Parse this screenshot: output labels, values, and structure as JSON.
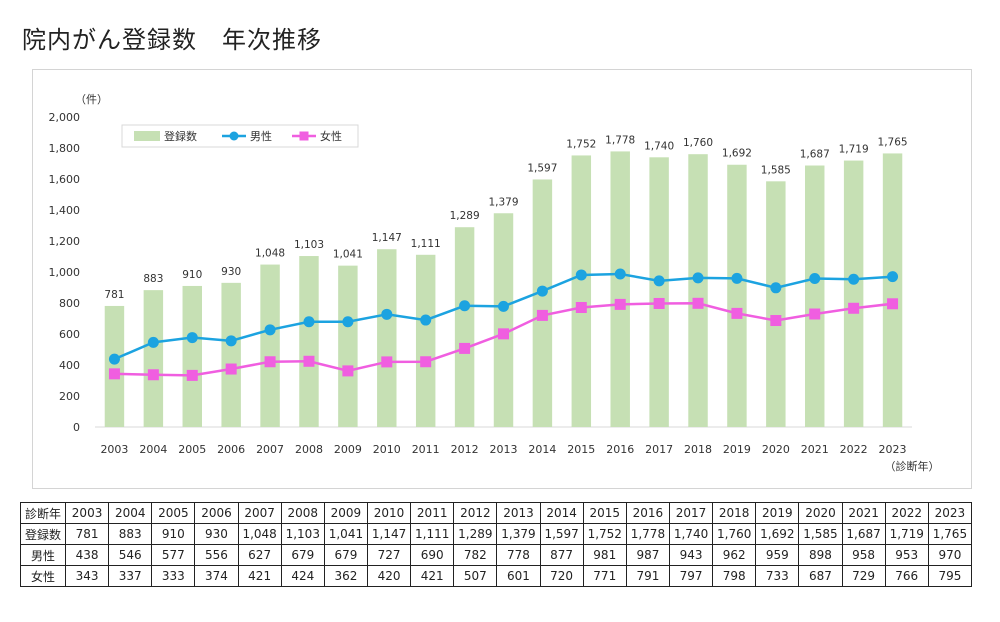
{
  "title": "院内がん登録数　年次推移",
  "chart_data": {
    "type": "bar",
    "categories": [
      "2003",
      "2004",
      "2005",
      "2006",
      "2007",
      "2008",
      "2009",
      "2010",
      "2011",
      "2012",
      "2013",
      "2014",
      "2015",
      "2016",
      "2017",
      "2018",
      "2019",
      "2020",
      "2021",
      "2022",
      "2023"
    ],
    "series": [
      {
        "name": "登録数",
        "type": "bar",
        "color": "#c6e0b4",
        "values": [
          781,
          883,
          910,
          930,
          1048,
          1103,
          1041,
          1147,
          1111,
          1289,
          1379,
          1597,
          1752,
          1778,
          1740,
          1760,
          1692,
          1585,
          1687,
          1719,
          1765
        ],
        "labels": [
          "781",
          "883",
          "910",
          "930",
          "1,048",
          "1,103",
          "1,041",
          "1,147",
          "1,111",
          "1,289",
          "1,379",
          "1,597",
          "1,752",
          "1,778",
          "1,740",
          "1,760",
          "1,692",
          "1,585",
          "1,687",
          "1,719",
          "1,765"
        ]
      },
      {
        "name": "男性",
        "type": "line",
        "color": "#1ca3e0",
        "values": [
          438,
          546,
          577,
          556,
          627,
          679,
          679,
          727,
          690,
          782,
          778,
          877,
          981,
          987,
          943,
          962,
          959,
          898,
          958,
          953,
          970
        ]
      },
      {
        "name": "女性",
        "type": "line",
        "color": "#f05ee0",
        "values": [
          343,
          337,
          333,
          374,
          421,
          424,
          362,
          420,
          421,
          507,
          601,
          720,
          771,
          791,
          797,
          798,
          733,
          687,
          729,
          766,
          795
        ]
      }
    ],
    "yunit": "（件）",
    "xunit": "（診断年）",
    "ylim": [
      0,
      2000
    ],
    "yticks": [
      "0",
      "200",
      "400",
      "600",
      "800",
      "1,000",
      "1,200",
      "1,400",
      "1,600",
      "1,800",
      "2,000"
    ],
    "legend": "top-left",
    "grid": false
  },
  "table": {
    "header": "診断年",
    "rows": [
      {
        "label": "登録数",
        "values": [
          "781",
          "883",
          "910",
          "930",
          "1,048",
          "1,103",
          "1,041",
          "1,147",
          "1,111",
          "1,289",
          "1,379",
          "1,597",
          "1,752",
          "1,778",
          "1,740",
          "1,760",
          "1,692",
          "1,585",
          "1,687",
          "1,719",
          "1,765"
        ]
      },
      {
        "label": "男性",
        "values": [
          "438",
          "546",
          "577",
          "556",
          "627",
          "679",
          "679",
          "727",
          "690",
          "782",
          "778",
          "877",
          "981",
          "987",
          "943",
          "962",
          "959",
          "898",
          "958",
          "953",
          "970"
        ]
      },
      {
        "label": "女性",
        "values": [
          "343",
          "337",
          "333",
          "374",
          "421",
          "424",
          "362",
          "420",
          "421",
          "507",
          "601",
          "720",
          "771",
          "791",
          "797",
          "798",
          "733",
          "687",
          "729",
          "766",
          "795"
        ]
      }
    ]
  }
}
